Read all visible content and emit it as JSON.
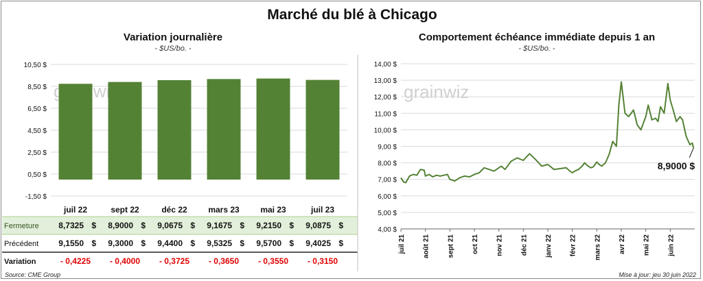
{
  "title": "Marché du blé à Chicago",
  "footer": {
    "source": "Source: CME Group",
    "update": "Mise à jour: jeu 30 juin 2022"
  },
  "watermark": "grainwiz",
  "colors": {
    "bar": "#548235",
    "line": "#548235",
    "table_highlight": "#e2efda",
    "negative": "#e00000",
    "grid": "#d9d9d9"
  },
  "chart_data": [
    {
      "type": "bar",
      "title": "Variation journalière",
      "subtitle": "- $US/bo. -",
      "categories": [
        "juil 22",
        "sept 22",
        "déc 22",
        "mars 23",
        "mai 23",
        "juil 23"
      ],
      "values": [
        8.7325,
        8.9,
        9.0675,
        9.1675,
        9.215,
        9.0875
      ],
      "ylim": [
        -1.5,
        10.5
      ],
      "yticks": [
        -1.5,
        0.5,
        2.5,
        4.5,
        6.5,
        8.5,
        10.5
      ],
      "ytick_labels": [
        "-1,50 $",
        "0,50 $",
        "2,50 $",
        "4,50 $",
        "6,50 $",
        "8,50 $",
        "10,50 $"
      ],
      "grid": true,
      "table": {
        "rows": [
          {
            "label": "Fermeture",
            "values": [
              "8,7325",
              "8,9000",
              "9,0675",
              "9,1675",
              "9,2150",
              "9,0875"
            ],
            "currency": "$"
          },
          {
            "label": "Précédent",
            "values": [
              "9,1550",
              "9,3000",
              "9,4400",
              "9,5325",
              "9,5700",
              "9,4025"
            ],
            "currency": "$"
          },
          {
            "label": "Variation",
            "values": [
              "- 0,4225",
              "- 0,4000",
              "- 0,3725",
              "- 0,3650",
              "- 0,3550",
              "- 0,3150"
            ]
          }
        ]
      }
    },
    {
      "type": "line",
      "title": "Comportement échéance immédiate depuis 1 an",
      "subtitle": "- $US/bo. -",
      "x_labels": [
        "juil 21",
        "août 21",
        "sept 21",
        "oct 21",
        "nov 21",
        "déc 21",
        "janv 22",
        "févr 22",
        "mars 22",
        "avr 22",
        "mai 22",
        "juin 22"
      ],
      "ylim": [
        4.0,
        14.0
      ],
      "yticks": [
        4,
        5,
        6,
        7,
        8,
        9,
        10,
        11,
        12,
        13,
        14
      ],
      "ytick_labels": [
        "4,00 $",
        "5,00 $",
        "6,00 $",
        "7,00 $",
        "8,00 $",
        "9,00 $",
        "10,00 $",
        "11,00 $",
        "12,00 $",
        "13,00 $",
        "14,00 $"
      ],
      "grid": true,
      "x_months": [
        0,
        0.1,
        0.2,
        0.35,
        0.5,
        0.65,
        0.8,
        0.95,
        1.0,
        1.15,
        1.3,
        1.45,
        1.6,
        1.75,
        1.9,
        2.0,
        2.2,
        2.4,
        2.6,
        2.8,
        3.0,
        3.2,
        3.4,
        3.6,
        3.8,
        4.0,
        4.1,
        4.25,
        4.5,
        4.75,
        5.0,
        5.25,
        5.5,
        5.75,
        6.0,
        6.25,
        6.5,
        6.75,
        6.9,
        7.0,
        7.1,
        7.25,
        7.4,
        7.5,
        7.6,
        7.75,
        7.85,
        8.0,
        8.1,
        8.2,
        8.35,
        8.5,
        8.65,
        8.8,
        8.9,
        9.0,
        9.15,
        9.3,
        9.5,
        9.65,
        9.8,
        10.0,
        10.1,
        10.25,
        10.4,
        10.5,
        10.6,
        10.75,
        10.9,
        11.0,
        11.1,
        11.25,
        11.4,
        11.5,
        11.65,
        11.8,
        11.9,
        11.95
      ],
      "values": [
        7.1,
        6.85,
        6.8,
        7.2,
        7.3,
        7.25,
        7.6,
        7.55,
        7.2,
        7.3,
        7.15,
        7.25,
        7.2,
        7.25,
        7.3,
        7.0,
        6.9,
        7.1,
        7.2,
        7.15,
        7.3,
        7.4,
        7.7,
        7.6,
        7.5,
        7.7,
        7.8,
        7.6,
        8.1,
        8.3,
        8.15,
        8.55,
        8.2,
        7.8,
        7.9,
        7.6,
        7.65,
        7.7,
        7.5,
        7.4,
        7.5,
        7.6,
        7.8,
        8.0,
        7.85,
        7.7,
        7.75,
        8.05,
        7.9,
        7.8,
        8.0,
        8.5,
        9.3,
        9.0,
        11.5,
        12.9,
        11.0,
        10.8,
        11.2,
        10.3,
        10.0,
        10.8,
        11.5,
        10.6,
        10.7,
        10.5,
        11.4,
        11.0,
        12.8,
        11.8,
        11.3,
        10.5,
        10.8,
        10.6,
        9.6,
        9.1,
        9.2,
        8.9
      ],
      "annotation": {
        "text": "8,9000 $",
        "month": 11.95,
        "value": 8.9
      }
    }
  ]
}
